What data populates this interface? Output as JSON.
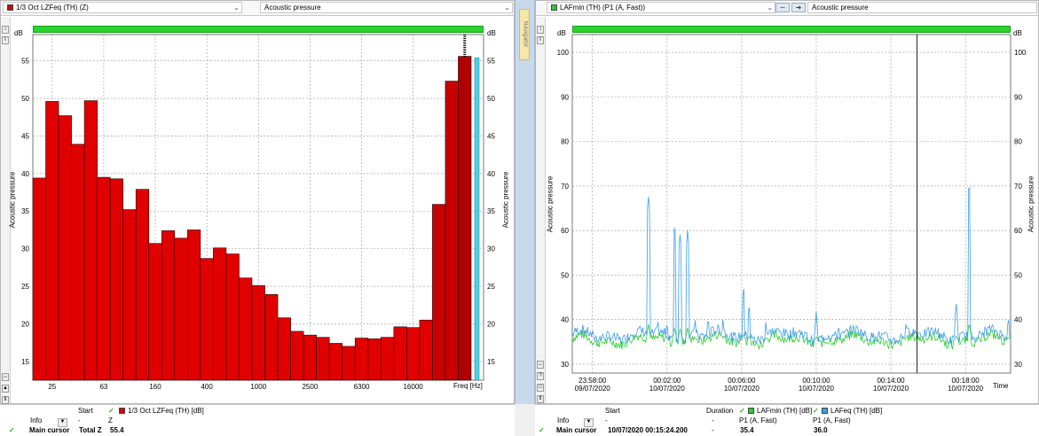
{
  "left_panel": {
    "series_label": "1/3 Oct LZFeq (TH) (Z)",
    "quantity_label": "Acoustic pressure",
    "unit_left": "dB",
    "unit_right": "dB",
    "y_axis_label": "Acoustic pressure",
    "x_unit_label": "Freq [Hz]",
    "series_color": "#e00000"
  },
  "right_panel": {
    "series_label": "LAFmin (TH) (P1 (A, Fast))",
    "quantity_label": "Acoustic pressure",
    "unit_left": "dB",
    "unit_right": "dB",
    "y_axis_label": "Acoustic pressure",
    "x_unit_label": "Time",
    "series_colors": {
      "LAFmin": "#2ecc2e",
      "LAFeq": "#3a9ee8"
    }
  },
  "splitter_tab_label": "Navigator",
  "chart_data": [
    {
      "type": "bar",
      "ylim": [
        12.5,
        58.5
      ],
      "yticks": [
        15,
        20,
        25,
        30,
        35,
        40,
        45,
        50,
        55
      ],
      "x_tick_labels": [
        "25",
        "63",
        "160",
        "400",
        "1000",
        "2500",
        "6300",
        "16000"
      ],
      "values": [
        39.4,
        49.6,
        47.7,
        43.9,
        49.7,
        39.5,
        39.3,
        35.2,
        37.9,
        30.7,
        32.4,
        31.4,
        32.5,
        28.7,
        30.1,
        29.3,
        26.1,
        25.1,
        23.9,
        20.8,
        19.0,
        18.5,
        18.2,
        17.4,
        17.0,
        18.1,
        18.0,
        18.2,
        19.6,
        19.5,
        20.5,
        35.9,
        52.3,
        55.6
      ],
      "total_bar": {
        "name": "Total Z",
        "value": 55.4,
        "color": "#4dd0e8"
      },
      "cursor_band": 33
    },
    {
      "type": "line",
      "ylim": [
        28,
        104
      ],
      "yticks": [
        30,
        40,
        50,
        60,
        70,
        80,
        90,
        100
      ],
      "x_range_minutes": [
        -3.08,
        20.42
      ],
      "x_ticks": [
        {
          "min": -2,
          "time": "23:58:00",
          "date": "09/07/2020"
        },
        {
          "min": 2,
          "time": "00:02:00",
          "date": "10/07/2020"
        },
        {
          "min": 6,
          "time": "00:06:00",
          "date": "10/07/2020"
        },
        {
          "min": 10,
          "time": "00:10:00",
          "date": "10/07/2020"
        },
        {
          "min": 14,
          "time": "00:14:00",
          "date": "10/07/2020"
        },
        {
          "min": 18,
          "time": "00:18:00",
          "date": "10/07/2020"
        }
      ],
      "cursor_minutes": 15.4,
      "series": [
        {
          "name": "LAFmin (TH)",
          "base": 35.4
        },
        {
          "name": "LAFeq (TH)",
          "base": 36.5,
          "peaks": [
            [
              1.0,
              68.0
            ],
            [
              1.5,
              40.5
            ],
            [
              2.0,
              40.0
            ],
            [
              2.4,
              61.5
            ],
            [
              2.7,
              59.5
            ],
            [
              3.1,
              60.2
            ],
            [
              3.5,
              40.5
            ],
            [
              4.2,
              41.0
            ],
            [
              5.0,
              40.5
            ],
            [
              6.1,
              47.8
            ],
            [
              6.4,
              44.0
            ],
            [
              7.3,
              40.0
            ],
            [
              10.0,
              42.0
            ],
            [
              11.2,
              39.5
            ],
            [
              14.8,
              39.0
            ],
            [
              17.5,
              44.0
            ],
            [
              18.2,
              71.0
            ],
            [
              20.3,
              41.0
            ]
          ]
        }
      ]
    }
  ],
  "legend_left": {
    "start_label": "Start",
    "series_name": "1/3 Oct LZFeq (TH) [dB]",
    "info_label": "Info",
    "info_value": "-",
    "z_label": "Z",
    "main_cursor_label": "Main cursor",
    "total_label": "Total Z",
    "total_value": "55.4"
  },
  "legend_right": {
    "start_label": "Start",
    "duration_label": "Duration",
    "series1_name": "LAFmin (TH) [dB]",
    "series2_name": "LAFeq (TH) [dB]",
    "info_label": "Info",
    "info_value": "-",
    "dash1": "-",
    "sub1": "P1 (A, Fast)",
    "sub2": "P1 (A, Fast)",
    "main_cursor_label": "Main cursor",
    "cursor_time": "10/07/2020 00:15:24.200",
    "duration_value": "-",
    "value1": "35.4",
    "value2": "36.0"
  }
}
